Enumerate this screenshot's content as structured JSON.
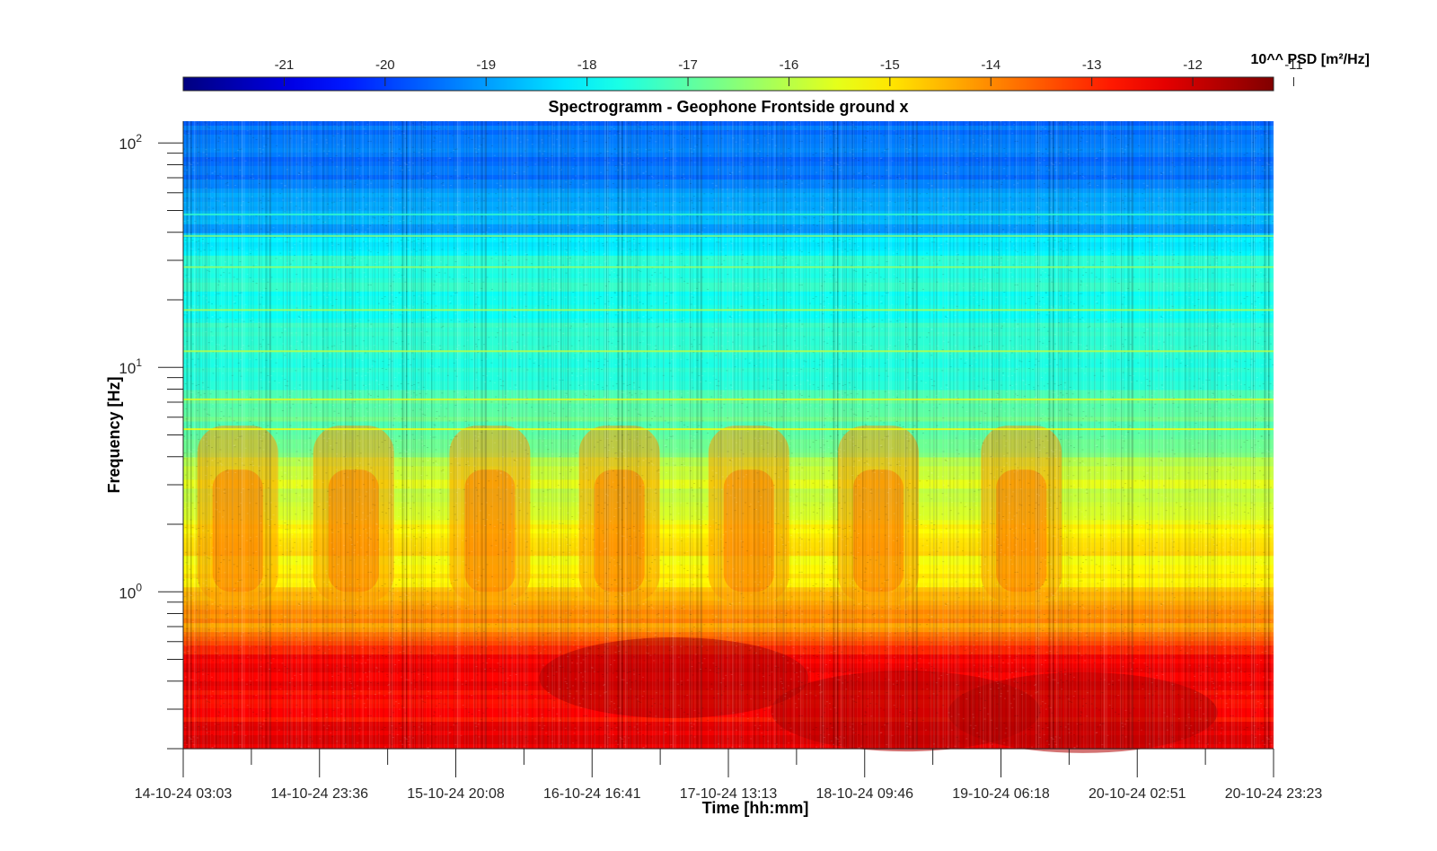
{
  "chart_data": {
    "type": "heatmap",
    "title": "Spectrogramm - Geophone Frontside ground x",
    "xlabel": "Time [hh:mm]",
    "ylabel": "Frequency [Hz]",
    "x_ticks": [
      "14-10-24 03:03",
      "14-10-24 23:36",
      "15-10-24 20:08",
      "16-10-24 16:41",
      "17-10-24 13:13",
      "18-10-24 09:46",
      "19-10-24 06:18",
      "20-10-24 02:51",
      "20-10-24 23:23"
    ],
    "y_scale": "log",
    "ylim": [
      0.2,
      125
    ],
    "y_ticks": [
      {
        "base": "10",
        "exp": "0"
      },
      {
        "base": "10",
        "exp": "1"
      },
      {
        "base": "10",
        "exp": "2"
      }
    ],
    "colorbar": {
      "label": "10^^ PSD [m²/Hz]",
      "range": [
        -22,
        -11.2
      ],
      "ticks": [
        "-21",
        "-20",
        "-19",
        "-18",
        "-17",
        "-16",
        "-15",
        "-14",
        "-13",
        "-12",
        "-11"
      ],
      "colormap": "jet",
      "placement": "top"
    },
    "frequency_profile": [
      {
        "f": 0.2,
        "psd": -12.3
      },
      {
        "f": 0.35,
        "psd": -12.3
      },
      {
        "f": 0.55,
        "psd": -12.6
      },
      {
        "f": 0.7,
        "psd": -13.8
      },
      {
        "f": 1.0,
        "psd": -14.6
      },
      {
        "f": 2.0,
        "psd": -15.2
      },
      {
        "f": 3.0,
        "psd": -15.5
      },
      {
        "f": 5.0,
        "psd": -16.6
      },
      {
        "f": 10.0,
        "psd": -17.3
      },
      {
        "f": 20.0,
        "psd": -17.5
      },
      {
        "f": 38.0,
        "psd": -17.7
      },
      {
        "f": 40.0,
        "psd": -18.6
      },
      {
        "f": 60.0,
        "psd": -19.0
      },
      {
        "f": 100.0,
        "psd": -19.3
      },
      {
        "f": 125.0,
        "psd": -19.5
      }
    ],
    "narrowband_lines_hz": [
      5.3,
      7.2,
      11.8,
      18.0,
      28.0,
      38.5,
      48.0
    ],
    "activity_bands_day_fraction": [
      0.4,
      1.25,
      2.25,
      3.2,
      4.15,
      5.1,
      6.15
    ],
    "colors": {
      "line": "#262626",
      "background": "#ffffff"
    }
  }
}
